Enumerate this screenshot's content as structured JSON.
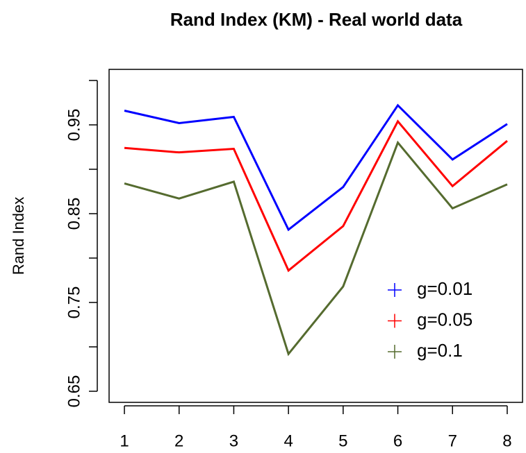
{
  "chart_data": {
    "type": "line",
    "title": "Rand Index (KM) - Real world data",
    "y_label": "Rand Index",
    "x": [
      1,
      2,
      3,
      4,
      5,
      6,
      7,
      8
    ],
    "series": [
      {
        "name": "g=0.01",
        "color": "#0000ff",
        "values": [
          0.966,
          0.952,
          0.959,
          0.832,
          0.88,
          0.972,
          0.911,
          0.951
        ]
      },
      {
        "name": "g=0.05",
        "color": "#ff0000",
        "values": [
          0.924,
          0.919,
          0.923,
          0.786,
          0.836,
          0.954,
          0.881,
          0.932
        ]
      },
      {
        "name": "g=0.1",
        "color": "#556b2f",
        "values": [
          0.884,
          0.867,
          0.886,
          0.692,
          0.768,
          0.93,
          0.856,
          0.883
        ]
      }
    ],
    "xlim": [
      0.72,
      8.28
    ],
    "xticks": [
      1,
      2,
      3,
      4,
      5,
      6,
      7,
      8
    ],
    "ylim": [
      0.6375,
      1.0125
    ],
    "yticks": [
      0.65,
      0.75,
      0.85,
      0.95
    ],
    "yticks_minor": [
      0.7,
      0.8,
      0.9,
      1
    ],
    "legend": "bottom-right",
    "grid": false
  }
}
